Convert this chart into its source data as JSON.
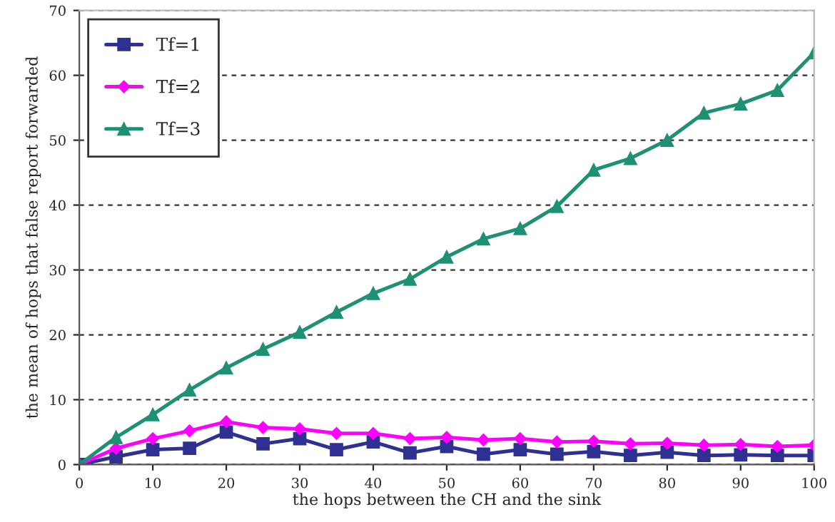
{
  "chart_data": {
    "type": "line",
    "xlabel": "the hops between the CH and the sink",
    "ylabel": "the mean of hops that false report forwarded",
    "x": [
      0,
      5,
      10,
      15,
      20,
      25,
      30,
      35,
      40,
      45,
      50,
      55,
      60,
      65,
      70,
      75,
      80,
      85,
      90,
      95,
      100
    ],
    "series": [
      {
        "name": "Tf=1",
        "color": "#2e3192",
        "marker": "square",
        "values": [
          0,
          1.2,
          2.3,
          2.5,
          5,
          3.2,
          4,
          2.3,
          3.5,
          1.8,
          2.8,
          1.6,
          2.3,
          1.6,
          2,
          1.4,
          1.9,
          1.4,
          1.5,
          1.4,
          1.4
        ]
      },
      {
        "name": "Tf=2",
        "color": "#ff00ff",
        "marker": "diamond",
        "values": [
          0,
          2.5,
          4,
          5.2,
          6.6,
          5.7,
          5.5,
          4.8,
          4.8,
          4,
          4.2,
          3.8,
          4,
          3.5,
          3.6,
          3.2,
          3.3,
          3,
          3.1,
          2.8,
          3
        ]
      },
      {
        "name": "Tf=3",
        "color": "#1e9073",
        "marker": "triangle",
        "values": [
          0,
          4.2,
          7.7,
          11.5,
          14.9,
          17.8,
          20.4,
          23.5,
          26.4,
          28.6,
          32,
          34.8,
          36.4,
          39.8,
          45.4,
          47.2,
          50,
          54.2,
          55.6,
          57.7,
          63.5
        ]
      }
    ],
    "xlim": [
      0,
      100
    ],
    "xticks": [
      0,
      10,
      20,
      30,
      40,
      50,
      60,
      70,
      80,
      90,
      100
    ],
    "ylim": [
      0,
      70
    ],
    "yticks": [
      0,
      10,
      20,
      30,
      40,
      50,
      60,
      70
    ],
    "grid": "y",
    "legend": "top left",
    "line_style": "solid"
  }
}
